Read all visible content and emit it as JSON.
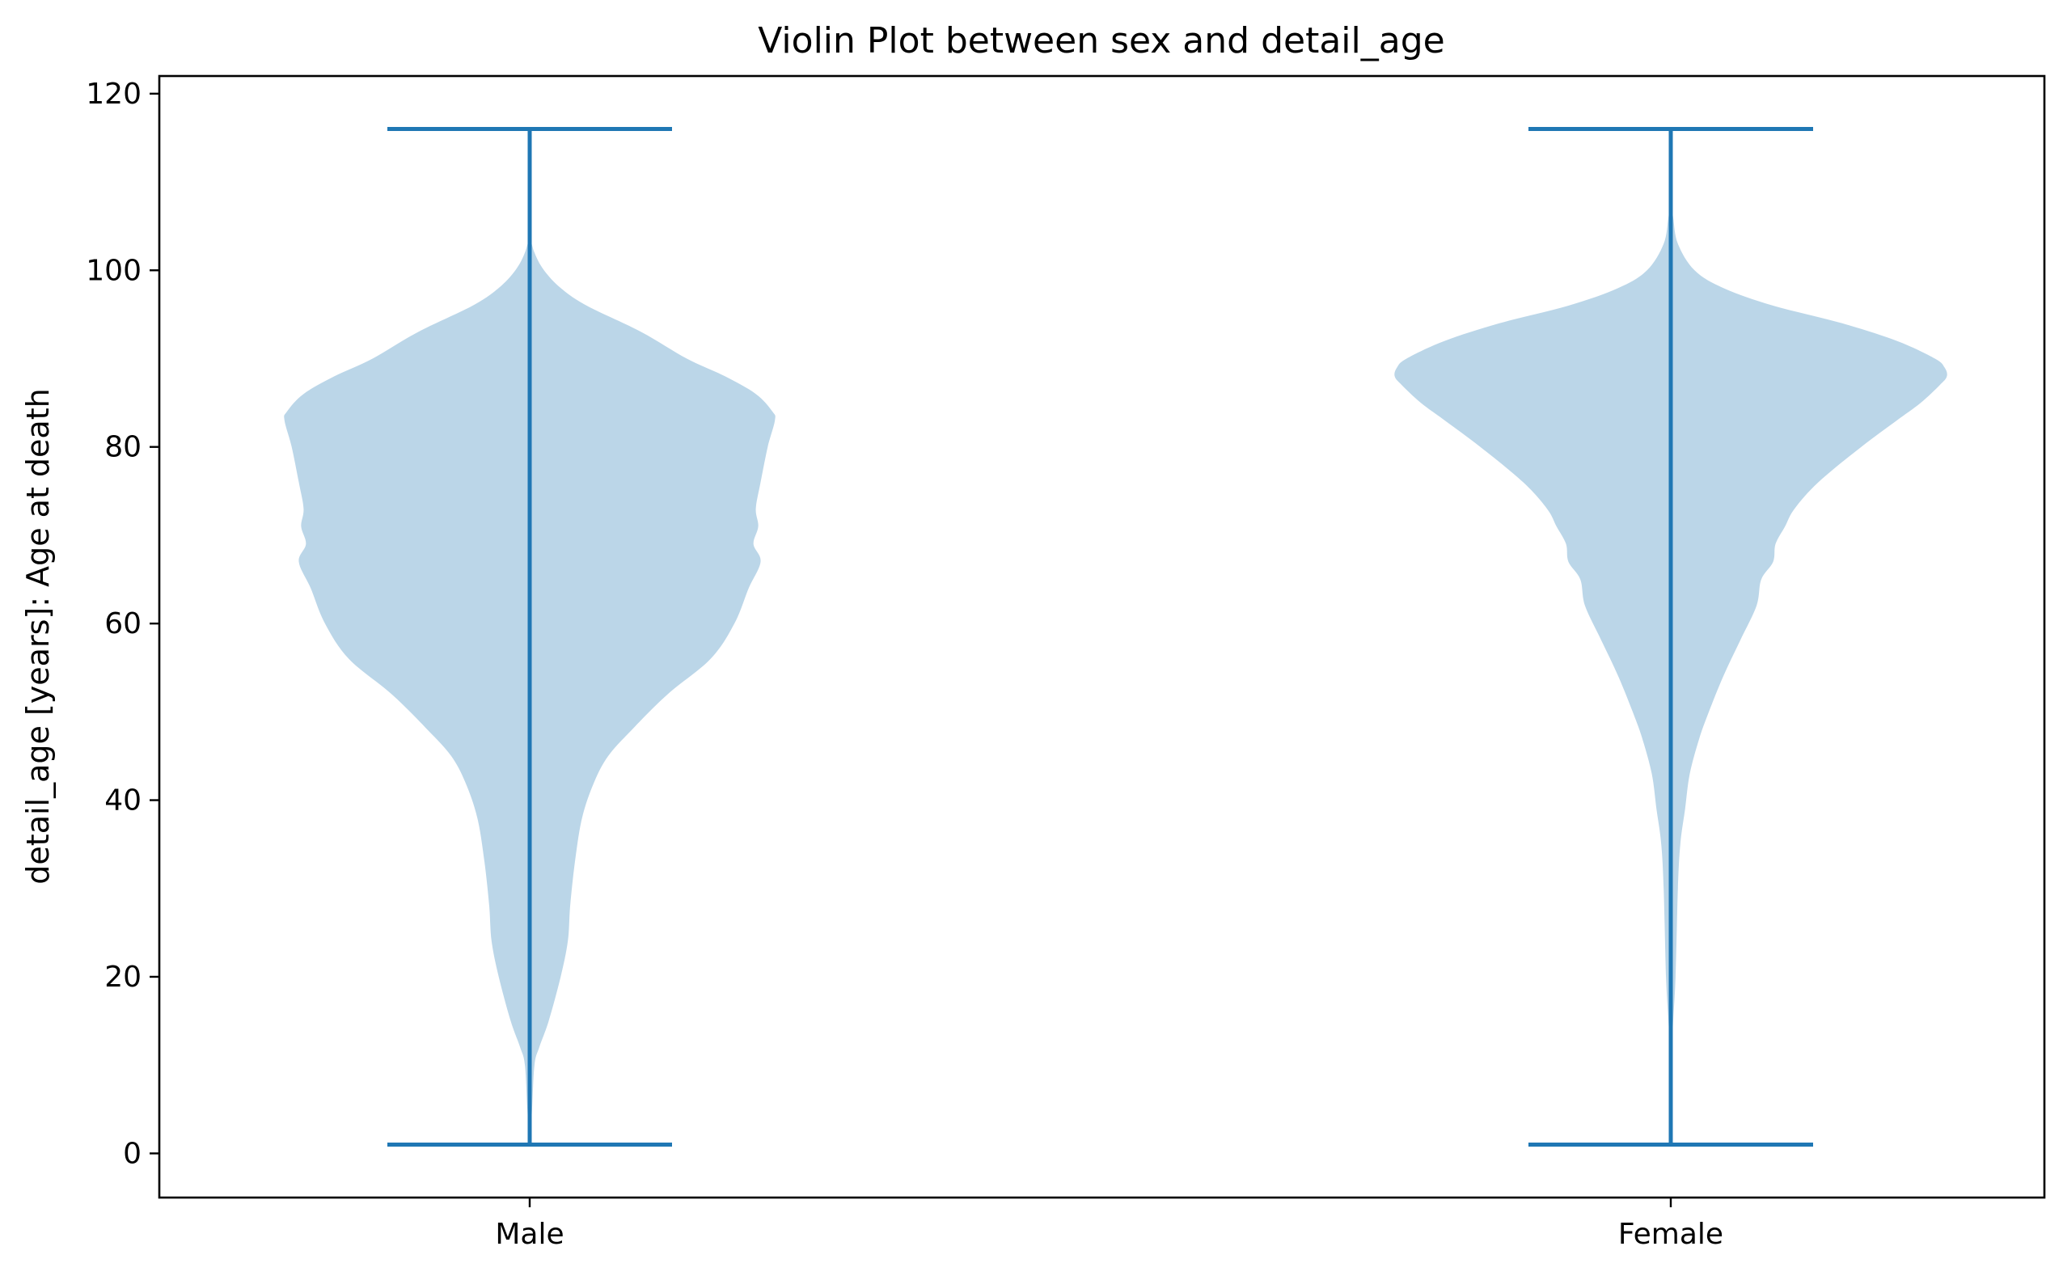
{
  "chart_data": {
    "type": "violin",
    "title": "Violin Plot between sex and detail_age",
    "xlabel": "",
    "ylabel": "detail_age [years]: Age at death",
    "ylim": [
      -5,
      122
    ],
    "yticks": [
      0,
      20,
      40,
      60,
      80,
      100,
      120
    ],
    "categories": [
      "Male",
      "Female"
    ],
    "color_fill": "#1f77b4",
    "fill_alpha": 0.3,
    "color_line": "#1f77b4",
    "violins": [
      {
        "category": "Male",
        "min": 1,
        "max": 116,
        "density_profile": [
          [
            1,
            0.0
          ],
          [
            5,
            0.01
          ],
          [
            10,
            0.02
          ],
          [
            12,
            0.04
          ],
          [
            15,
            0.08
          ],
          [
            20,
            0.13
          ],
          [
            24,
            0.16
          ],
          [
            28,
            0.17
          ],
          [
            33,
            0.19
          ],
          [
            38,
            0.22
          ],
          [
            42,
            0.27
          ],
          [
            45,
            0.33
          ],
          [
            48,
            0.43
          ],
          [
            52,
            0.58
          ],
          [
            56,
            0.76
          ],
          [
            60,
            0.86
          ],
          [
            64,
            0.92
          ],
          [
            67,
            0.97
          ],
          [
            69,
            0.94
          ],
          [
            71,
            0.96
          ],
          [
            73,
            0.95
          ],
          [
            76,
            0.97
          ],
          [
            80,
            1.0
          ],
          [
            83,
            1.03
          ],
          [
            84,
            1.02
          ],
          [
            86,
            0.95
          ],
          [
            88,
            0.82
          ],
          [
            90,
            0.66
          ],
          [
            93,
            0.47
          ],
          [
            96,
            0.24
          ],
          [
            98,
            0.13
          ],
          [
            100,
            0.06
          ],
          [
            102,
            0.02
          ],
          [
            104,
            0.0
          ]
        ]
      },
      {
        "category": "Female",
        "min": 1,
        "max": 116,
        "density_profile": [
          [
            1,
            0.0
          ],
          [
            10,
            0.0
          ],
          [
            15,
            0.01
          ],
          [
            20,
            0.02
          ],
          [
            30,
            0.03
          ],
          [
            35,
            0.04
          ],
          [
            39,
            0.06
          ],
          [
            43,
            0.08
          ],
          [
            47,
            0.12
          ],
          [
            50,
            0.16
          ],
          [
            54,
            0.22
          ],
          [
            58,
            0.29
          ],
          [
            62,
            0.36
          ],
          [
            65,
            0.38
          ],
          [
            67,
            0.43
          ],
          [
            69,
            0.44
          ],
          [
            71,
            0.48
          ],
          [
            73,
            0.52
          ],
          [
            76,
            0.62
          ],
          [
            80,
            0.8
          ],
          [
            83,
            0.95
          ],
          [
            85,
            1.05
          ],
          [
            87,
            1.13
          ],
          [
            88,
            1.16
          ],
          [
            89,
            1.15
          ],
          [
            90,
            1.11
          ],
          [
            92,
            0.95
          ],
          [
            94,
            0.72
          ],
          [
            96,
            0.43
          ],
          [
            98,
            0.22
          ],
          [
            100,
            0.1
          ],
          [
            103,
            0.03
          ],
          [
            106,
            0.01
          ],
          [
            108,
            0.0
          ]
        ]
      }
    ]
  }
}
